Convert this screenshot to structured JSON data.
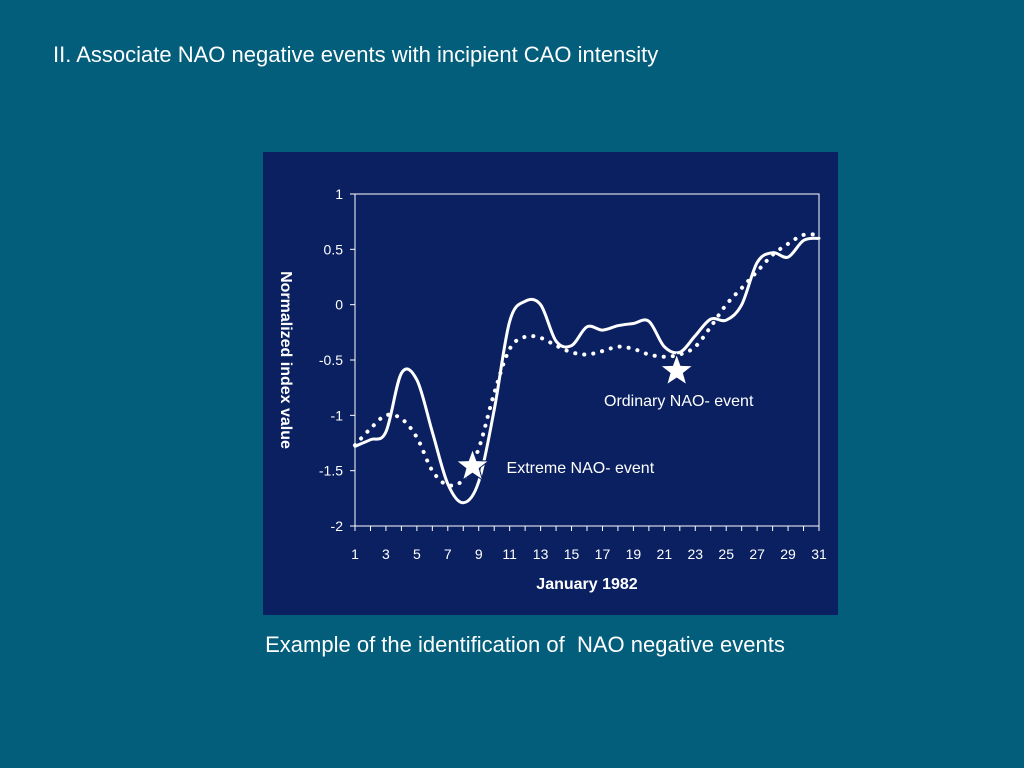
{
  "slide": {
    "title": "II. Associate NAO negative events with incipient CAO intensity",
    "caption": "Example of the identification of  NAO negative events"
  },
  "colors": {
    "background": "#035e7b",
    "panel": "#0b2060",
    "lines": "#ffffff"
  },
  "chart_data": {
    "type": "line",
    "xlabel": "January 1982",
    "ylabel": "Normalized index value",
    "xlim": [
      1,
      31
    ],
    "ylim": [
      -2,
      1
    ],
    "x_tick_labels": [
      "1",
      "3",
      "5",
      "7",
      "9",
      "11",
      "13",
      "15",
      "17",
      "19",
      "21",
      "23",
      "25",
      "27",
      "29",
      "31"
    ],
    "y_tick_labels": [
      "1",
      "0.5",
      "0",
      "-0.5",
      "-1",
      "-1.5",
      "-2"
    ],
    "y_tick_values": [
      1,
      0.5,
      0,
      -0.5,
      -1,
      -1.5,
      -2
    ],
    "grid": false,
    "legend": "none",
    "series": [
      {
        "style": "solid",
        "x": [
          1,
          2,
          3,
          4,
          5,
          6,
          7,
          8,
          9,
          10,
          11,
          12,
          13,
          14,
          15,
          16,
          17,
          18,
          19,
          20,
          21,
          22,
          23,
          24,
          25,
          26,
          27,
          28,
          29,
          30,
          31
        ],
        "values": [
          -1.28,
          -1.22,
          -1.15,
          -0.62,
          -0.68,
          -1.15,
          -1.62,
          -1.79,
          -1.6,
          -0.95,
          -0.15,
          0.03,
          0.0,
          -0.33,
          -0.37,
          -0.2,
          -0.23,
          -0.19,
          -0.17,
          -0.15,
          -0.38,
          -0.43,
          -0.28,
          -0.13,
          -0.14,
          0.0,
          0.38,
          0.47,
          0.43,
          0.58,
          0.6
        ]
      },
      {
        "style": "dotted",
        "x": [
          1,
          2,
          3,
          4,
          5,
          6,
          7,
          8,
          9,
          10,
          11,
          12,
          13,
          14,
          15,
          16,
          17,
          18,
          19,
          20,
          21,
          22,
          23,
          24,
          25,
          26,
          27,
          28,
          29,
          30,
          31
        ],
        "values": [
          -1.27,
          -1.12,
          -1.0,
          -1.03,
          -1.2,
          -1.5,
          -1.63,
          -1.58,
          -1.3,
          -0.8,
          -0.4,
          -0.29,
          -0.3,
          -0.37,
          -0.43,
          -0.45,
          -0.42,
          -0.38,
          -0.4,
          -0.45,
          -0.47,
          -0.45,
          -0.38,
          -0.2,
          0.0,
          0.15,
          0.3,
          0.45,
          0.55,
          0.63,
          0.63
        ]
      }
    ],
    "annotations": [
      {
        "label": "Extreme NAO- event",
        "x": 8.6,
        "y": -1.46
      },
      {
        "label": "Ordinary NAO- event",
        "x": 21.8,
        "y": -0.6
      }
    ]
  }
}
